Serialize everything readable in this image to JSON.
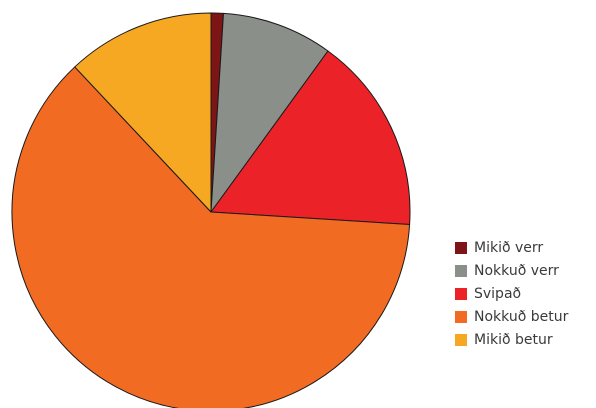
{
  "chart_data": {
    "type": "pie",
    "title": "",
    "categories": [
      "Mikið verr",
      "Nokkuð verr",
      "Svipað",
      "Nokkuð betur",
      "Mikið betur"
    ],
    "values": [
      1,
      9,
      16,
      62,
      12
    ],
    "colors": [
      "#7d1416",
      "#8a8f89",
      "#ec2229",
      "#f26b23",
      "#f7a823"
    ],
    "legend_position": "bottom-right",
    "start_angle": "top",
    "direction": "clockwise"
  }
}
